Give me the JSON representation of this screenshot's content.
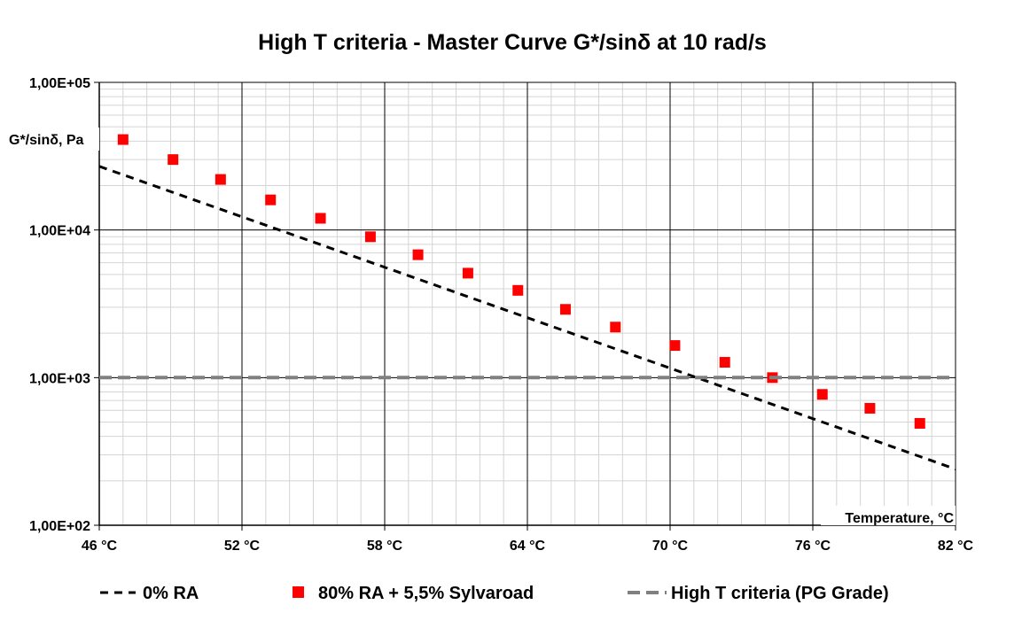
{
  "chart_data": {
    "type": "scatter",
    "title": "High T criteria - Master Curve G*/sinδ at 10 rad/s",
    "xlabel": "Temperature, °C",
    "ylabel": "G*/sinδ, Pa",
    "xlim": [
      46,
      82
    ],
    "ylim": [
      100,
      100000
    ],
    "yscale": "log",
    "x_ticks": [
      46,
      52,
      58,
      64,
      70,
      76,
      82
    ],
    "x_tick_labels": [
      "46 °C",
      "52 °C",
      "58 °C",
      "64 °C",
      "70 °C",
      "76 °C",
      "82 °C"
    ],
    "y_ticks": [
      100,
      1000,
      10000,
      100000
    ],
    "y_tick_labels": [
      "1,00E+02",
      "1,00E+03",
      "1,00E+04",
      "1,00E+05"
    ],
    "grid": true,
    "legend_position": "bottom",
    "series": [
      {
        "name": "0% RA",
        "style": "dashed-line",
        "color": "#000000",
        "x": [
          46,
          82
        ],
        "y": [
          27000,
          240
        ]
      },
      {
        "name": "80% RA + 5,5% Sylvaroad",
        "style": "square-markers",
        "color": "#ff0000",
        "x": [
          47.0,
          49.1,
          51.1,
          53.2,
          55.3,
          57.4,
          59.4,
          61.5,
          63.6,
          65.6,
          67.7,
          70.2,
          72.3,
          74.3,
          76.4,
          78.4,
          80.5
        ],
        "y": [
          41000,
          30000,
          22000,
          16000,
          12000,
          9000,
          6800,
          5100,
          3900,
          2900,
          2200,
          1650,
          1270,
          1000,
          770,
          620,
          490
        ]
      },
      {
        "name": "High T criteria (PG Grade)",
        "style": "dashed-line",
        "color": "#808080",
        "x": [
          46,
          82
        ],
        "y": [
          1000,
          1000
        ]
      }
    ],
    "legend": {
      "entries": [
        "0% RA",
        "80% RA + 5,5% Sylvaroad",
        "High T criteria (PG Grade)"
      ]
    }
  }
}
